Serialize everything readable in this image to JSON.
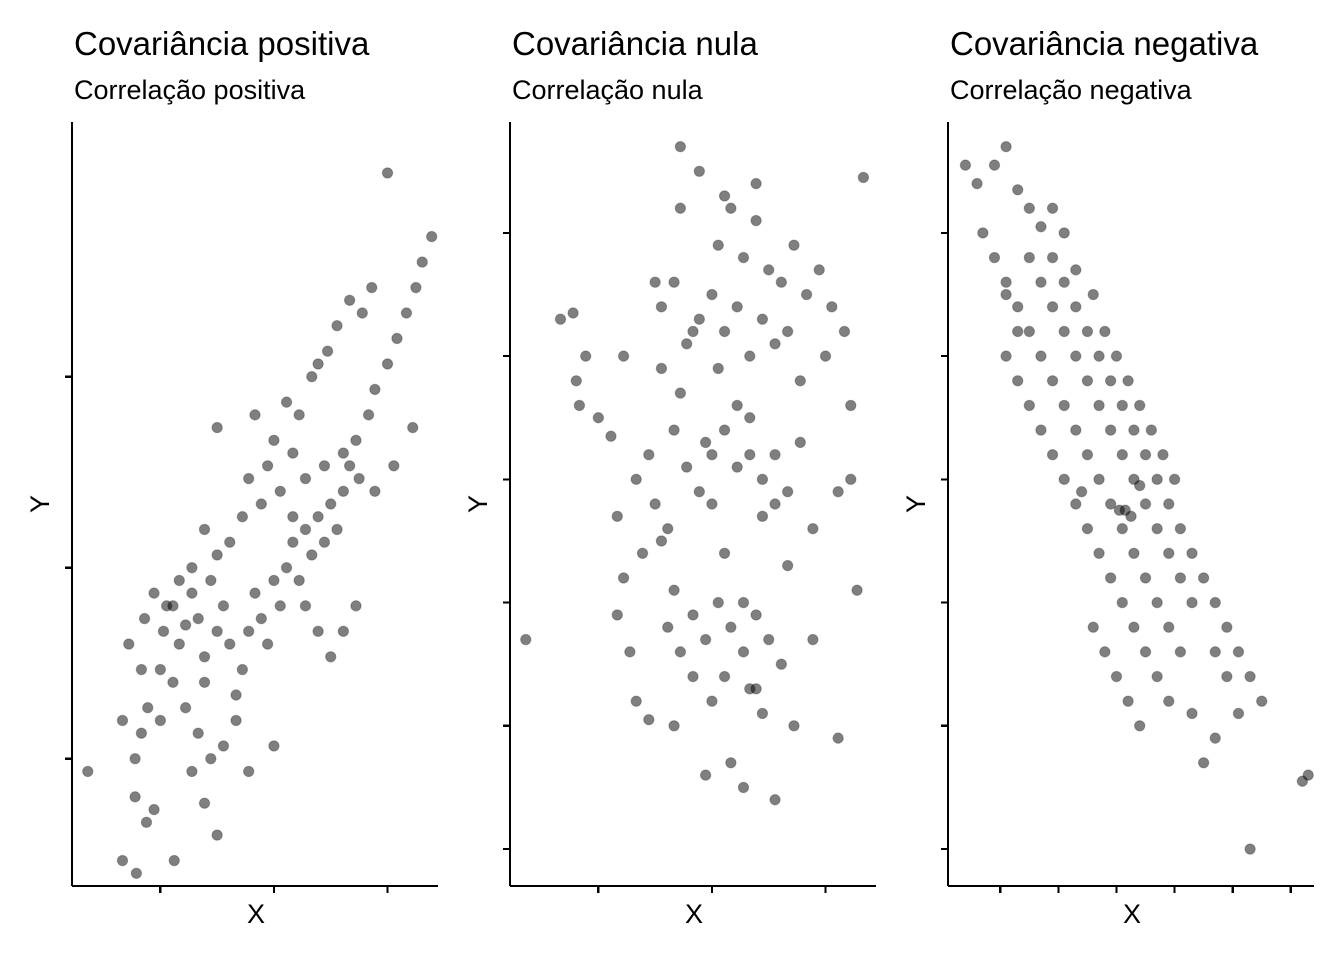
{
  "chart_data": [
    {
      "type": "scatter",
      "title": "Covariância positiva",
      "subtitle": "Correlação positiva",
      "xlabel": "X",
      "ylabel": "Y",
      "xlim": [
        -3.2,
        2.6
      ],
      "ylim": [
        -2.5,
        3.5
      ],
      "x_ticks": [
        -1.8,
        0,
        1.8
      ],
      "y_ticks": [
        -1.5,
        0,
        1.5
      ],
      "tick_labels_shown": false,
      "grid": false,
      "legend": "none",
      "point_color": "#000000",
      "point_alpha": 0.5,
      "points": [
        [
          -2.95,
          -1.6
        ],
        [
          -2.4,
          -2.3
        ],
        [
          -2.18,
          -2.4
        ],
        [
          -2.02,
          -2.0
        ],
        [
          -1.9,
          -1.9
        ],
        [
          -1.58,
          -2.3
        ],
        [
          -2.1,
          -1.3
        ],
        [
          -2.2,
          -1.8
        ],
        [
          -2.05,
          -0.4
        ],
        [
          -2.3,
          -0.6
        ],
        [
          -2.1,
          -0.8
        ],
        [
          -1.8,
          -0.8
        ],
        [
          -1.75,
          -0.5
        ],
        [
          -1.6,
          -0.3
        ],
        [
          -1.5,
          -0.6
        ],
        [
          -1.4,
          -0.45
        ],
        [
          -1.3,
          -0.2
        ],
        [
          -1.2,
          -0.4
        ],
        [
          -1.1,
          -0.7
        ],
        [
          -1.1,
          -0.9
        ],
        [
          -1.0,
          -0.1
        ],
        [
          -0.9,
          -0.5
        ],
        [
          -0.8,
          -0.3
        ],
        [
          -0.7,
          -0.6
        ],
        [
          -0.6,
          -1.0
        ],
        [
          -0.5,
          -0.8
        ],
        [
          -0.4,
          -0.5
        ],
        [
          -0.3,
          -0.2
        ],
        [
          -0.2,
          -0.4
        ],
        [
          -0.1,
          -0.6
        ],
        [
          0.0,
          -0.1
        ],
        [
          0.1,
          -0.3
        ],
        [
          0.2,
          0.0
        ],
        [
          0.3,
          0.2
        ],
        [
          0.4,
          -0.1
        ],
        [
          0.5,
          0.3
        ],
        [
          0.6,
          0.1
        ],
        [
          0.7,
          0.4
        ],
        [
          0.8,
          0.2
        ],
        [
          0.9,
          0.5
        ],
        [
          1.0,
          0.3
        ],
        [
          1.1,
          0.6
        ],
        [
          1.2,
          0.8
        ],
        [
          1.3,
          1.0
        ],
        [
          1.5,
          1.2
        ],
        [
          1.6,
          1.4
        ],
        [
          1.8,
          1.6
        ],
        [
          1.95,
          1.8
        ],
        [
          2.1,
          2.0
        ],
        [
          2.25,
          2.2
        ],
        [
          2.35,
          2.4
        ],
        [
          2.5,
          2.6
        ],
        [
          1.8,
          3.1
        ],
        [
          -0.9,
          1.1
        ],
        [
          -0.3,
          1.2
        ],
        [
          0.0,
          1.0
        ],
        [
          0.2,
          1.3
        ],
        [
          0.4,
          1.2
        ],
        [
          0.6,
          1.5
        ],
        [
          0.7,
          1.6
        ],
        [
          0.85,
          1.7
        ],
        [
          1.0,
          1.9
        ],
        [
          1.2,
          2.1
        ],
        [
          1.4,
          2.0
        ],
        [
          1.55,
          2.2
        ],
        [
          0.3,
          0.9
        ],
        [
          0.5,
          0.7
        ],
        [
          0.8,
          0.8
        ],
        [
          1.1,
          0.9
        ],
        [
          1.35,
          0.7
        ],
        [
          1.6,
          0.6
        ],
        [
          1.9,
          0.8
        ],
        [
          2.2,
          1.1
        ],
        [
          -0.5,
          0.4
        ],
        [
          -0.7,
          0.2
        ],
        [
          -0.9,
          0.1
        ],
        [
          -1.1,
          0.3
        ],
        [
          -1.3,
          0.0
        ],
        [
          -1.5,
          -0.1
        ],
        [
          -1.7,
          -0.3
        ],
        [
          -1.9,
          -0.2
        ],
        [
          -0.2,
          0.5
        ],
        [
          -0.4,
          0.7
        ],
        [
          -0.1,
          0.8
        ],
        [
          0.1,
          0.6
        ],
        [
          0.3,
          0.4
        ],
        [
          0.5,
          -0.3
        ],
        [
          0.7,
          -0.5
        ],
        [
          0.9,
          -0.7
        ],
        [
          1.1,
          -0.5
        ],
        [
          1.3,
          -0.3
        ],
        [
          -0.6,
          -1.2
        ],
        [
          -0.8,
          -1.4
        ],
        [
          -1.0,
          -1.5
        ],
        [
          -1.2,
          -1.3
        ],
        [
          -1.4,
          -1.1
        ],
        [
          -1.6,
          -0.9
        ],
        [
          -0.4,
          -1.6
        ],
        [
          -0.9,
          -2.1
        ],
        [
          -2.2,
          -1.5
        ],
        [
          -2.4,
          -1.2
        ],
        [
          -2.0,
          -1.1
        ],
        [
          -1.8,
          -1.2
        ],
        [
          -1.3,
          -1.6
        ],
        [
          -1.1,
          -1.85
        ],
        [
          0.0,
          -1.4
        ]
      ]
    },
    {
      "type": "scatter",
      "title": "Covariância nula",
      "subtitle": "Correlação nula",
      "xlabel": "X",
      "ylabel": "Y",
      "xlim": [
        -3.2,
        2.6
      ],
      "ylim": [
        -3.3,
        2.9
      ],
      "x_ticks": [
        -1.8,
        0,
        1.8
      ],
      "y_ticks": [
        -3,
        -2,
        -1,
        0,
        1,
        2
      ],
      "tick_labels_shown": false,
      "grid": false,
      "legend": "none",
      "points": [
        [
          -2.95,
          -1.3
        ],
        [
          -2.4,
          1.3
        ],
        [
          -2.2,
          1.35
        ],
        [
          -2.15,
          0.8
        ],
        [
          -2.1,
          0.6
        ],
        [
          -2.0,
          1.0
        ],
        [
          -1.8,
          0.5
        ],
        [
          -1.6,
          0.35
        ],
        [
          -1.5,
          -0.3
        ],
        [
          -1.4,
          -0.8
        ],
        [
          -1.2,
          0.0
        ],
        [
          -1.0,
          0.2
        ],
        [
          -0.8,
          -0.5
        ],
        [
          -0.6,
          -0.9
        ],
        [
          -0.5,
          0.7
        ],
        [
          -0.3,
          1.2
        ],
        [
          -0.1,
          0.3
        ],
        [
          0.0,
          -0.2
        ],
        [
          0.1,
          0.9
        ],
        [
          0.2,
          -0.6
        ],
        [
          0.4,
          0.1
        ],
        [
          0.5,
          -1.0
        ],
        [
          0.6,
          0.5
        ],
        [
          0.8,
          -0.3
        ],
        [
          1.0,
          0.2
        ],
        [
          1.2,
          -0.7
        ],
        [
          1.4,
          0.8
        ],
        [
          1.6,
          -0.4
        ],
        [
          1.8,
          1.0
        ],
        [
          2.0,
          -0.1
        ],
        [
          2.2,
          0.6
        ],
        [
          2.3,
          -0.9
        ],
        [
          2.2,
          0.0
        ],
        [
          -1.2,
          -1.8
        ],
        [
          -1.0,
          -1.95
        ],
        [
          -0.6,
          -2.0
        ],
        [
          -0.3,
          -1.6
        ],
        [
          -0.1,
          -2.4
        ],
        [
          0.3,
          -2.3
        ],
        [
          0.5,
          -2.5
        ],
        [
          0.7,
          -1.7
        ],
        [
          1.0,
          -2.6
        ],
        [
          1.3,
          -2.0
        ],
        [
          1.6,
          -1.3
        ],
        [
          2.0,
          -2.1
        ],
        [
          -0.5,
          2.2
        ],
        [
          -0.2,
          2.5
        ],
        [
          0.1,
          1.9
        ],
        [
          0.3,
          2.2
        ],
        [
          0.5,
          1.8
        ],
        [
          0.7,
          2.1
        ],
        [
          0.9,
          1.7
        ],
        [
          1.1,
          1.6
        ],
        [
          1.3,
          1.9
        ],
        [
          1.5,
          1.5
        ],
        [
          1.7,
          1.7
        ],
        [
          1.9,
          1.4
        ],
        [
          2.1,
          1.2
        ],
        [
          2.4,
          2.45
        ],
        [
          -0.8,
          1.4
        ],
        [
          -0.6,
          1.6
        ],
        [
          -0.4,
          1.1
        ],
        [
          -0.2,
          1.3
        ],
        [
          0.0,
          1.5
        ],
        [
          0.2,
          1.2
        ],
        [
          0.4,
          1.4
        ],
        [
          0.6,
          1.0
        ],
        [
          0.8,
          1.3
        ],
        [
          1.0,
          1.1
        ],
        [
          1.2,
          1.2
        ],
        [
          -0.8,
          0.9
        ],
        [
          -0.6,
          0.4
        ],
        [
          -0.4,
          0.1
        ],
        [
          -0.2,
          -0.1
        ],
        [
          0.0,
          0.2
        ],
        [
          0.2,
          0.4
        ],
        [
          0.4,
          0.6
        ],
        [
          0.6,
          0.2
        ],
        [
          0.8,
          0.0
        ],
        [
          1.0,
          -0.2
        ],
        [
          1.2,
          -0.1
        ],
        [
          1.4,
          0.3
        ],
        [
          -0.7,
          -1.2
        ],
        [
          -0.5,
          -1.4
        ],
        [
          -0.3,
          -1.1
        ],
        [
          -0.1,
          -1.3
        ],
        [
          0.1,
          -1.0
        ],
        [
          0.3,
          -1.2
        ],
        [
          0.5,
          -1.4
        ],
        [
          0.7,
          -1.1
        ],
        [
          0.9,
          -1.3
        ],
        [
          1.1,
          -1.5
        ],
        [
          -0.9,
          -0.2
        ],
        [
          -0.7,
          -0.4
        ],
        [
          -1.1,
          -0.6
        ],
        [
          -1.3,
          -1.4
        ],
        [
          -1.5,
          -1.1
        ],
        [
          0.0,
          -1.8
        ],
        [
          0.2,
          -1.6
        ],
        [
          0.6,
          -1.7
        ],
        [
          0.8,
          -1.9
        ],
        [
          -0.5,
          2.7
        ],
        [
          0.2,
          2.3
        ],
        [
          0.7,
          2.4
        ],
        [
          -1.4,
          1.0
        ],
        [
          -0.9,
          1.6
        ]
      ]
    },
    {
      "type": "scatter",
      "title": "Covariância negativa",
      "subtitle": "Correlação negativa",
      "xlabel": "X",
      "ylabel": "Y",
      "xlim": [
        -3.0,
        3.3
      ],
      "ylim": [
        -3.3,
        2.9
      ],
      "x_ticks": [
        -2.1,
        -1.1,
        -0.1,
        0.9,
        1.9,
        2.9
      ],
      "y_ticks": [
        -3,
        -2,
        -1,
        0,
        1,
        2
      ],
      "tick_labels_shown": false,
      "grid": false,
      "legend": "none",
      "points": [
        [
          -2.7,
          2.55
        ],
        [
          -2.5,
          2.4
        ],
        [
          -2.2,
          2.55
        ],
        [
          -2.0,
          2.7
        ],
        [
          -1.8,
          2.35
        ],
        [
          -1.6,
          2.2
        ],
        [
          -1.4,
          2.05
        ],
        [
          -1.2,
          1.8
        ],
        [
          -1.0,
          1.6
        ],
        [
          -0.8,
          1.4
        ],
        [
          -0.6,
          1.2
        ],
        [
          -0.4,
          1.0
        ],
        [
          -0.2,
          0.8
        ],
        [
          0.0,
          0.6
        ],
        [
          0.2,
          0.4
        ],
        [
          0.4,
          0.2
        ],
        [
          0.6,
          0.0
        ],
        [
          0.8,
          -0.2
        ],
        [
          1.0,
          -0.4
        ],
        [
          1.2,
          -0.6
        ],
        [
          1.4,
          -0.8
        ],
        [
          1.6,
          -1.0
        ],
        [
          1.8,
          -1.2
        ],
        [
          2.0,
          -1.4
        ],
        [
          2.2,
          -1.6
        ],
        [
          2.4,
          -1.8
        ],
        [
          3.2,
          -2.4
        ],
        [
          3.1,
          -2.45
        ],
        [
          2.2,
          -3.0
        ],
        [
          -2.4,
          2.0
        ],
        [
          -2.2,
          1.8
        ],
        [
          -2.0,
          1.6
        ],
        [
          -1.8,
          1.4
        ],
        [
          -1.6,
          1.2
        ],
        [
          -1.4,
          1.0
        ],
        [
          -1.2,
          0.8
        ],
        [
          -1.0,
          0.6
        ],
        [
          -0.8,
          0.4
        ],
        [
          -0.6,
          0.2
        ],
        [
          -0.4,
          0.0
        ],
        [
          -0.2,
          -0.2
        ],
        [
          0.0,
          -0.4
        ],
        [
          0.2,
          -0.6
        ],
        [
          0.4,
          -0.8
        ],
        [
          0.6,
          -1.0
        ],
        [
          0.8,
          -1.2
        ],
        [
          1.0,
          -1.4
        ],
        [
          -2.0,
          1.0
        ],
        [
          -1.8,
          0.8
        ],
        [
          -1.6,
          0.6
        ],
        [
          -1.4,
          0.4
        ],
        [
          -1.2,
          0.2
        ],
        [
          -1.0,
          0.0
        ],
        [
          -0.8,
          -0.2
        ],
        [
          -0.6,
          -0.4
        ],
        [
          -0.4,
          -0.6
        ],
        [
          -0.2,
          -0.8
        ],
        [
          0.0,
          -1.0
        ],
        [
          0.2,
          -1.2
        ],
        [
          0.4,
          -1.4
        ],
        [
          0.6,
          -1.6
        ],
        [
          0.8,
          -1.8
        ],
        [
          1.4,
          -2.3
        ],
        [
          1.6,
          -2.1
        ],
        [
          1.2,
          -1.9
        ],
        [
          -1.6,
          1.8
        ],
        [
          -1.4,
          1.6
        ],
        [
          -1.2,
          1.4
        ],
        [
          -1.0,
          1.2
        ],
        [
          -0.8,
          1.0
        ],
        [
          -0.6,
          0.8
        ],
        [
          -0.4,
          0.6
        ],
        [
          -0.2,
          0.4
        ],
        [
          0.0,
          0.2
        ],
        [
          0.2,
          0.0
        ],
        [
          0.4,
          -0.2
        ],
        [
          0.6,
          -0.4
        ],
        [
          0.8,
          -0.6
        ],
        [
          1.0,
          -0.8
        ],
        [
          1.2,
          -1.0
        ],
        [
          -1.2,
          2.2
        ],
        [
          -1.0,
          2.0
        ],
        [
          -0.8,
          1.7
        ],
        [
          -0.5,
          1.5
        ],
        [
          -0.3,
          1.2
        ],
        [
          -0.1,
          1.0
        ],
        [
          0.1,
          0.8
        ],
        [
          0.3,
          0.6
        ],
        [
          0.5,
          0.4
        ],
        [
          0.7,
          0.2
        ],
        [
          0.9,
          0.0
        ],
        [
          -0.5,
          -1.2
        ],
        [
          -0.3,
          -1.4
        ],
        [
          -0.1,
          -1.6
        ],
        [
          0.1,
          -1.8
        ],
        [
          0.3,
          -2.0
        ],
        [
          1.8,
          -1.6
        ],
        [
          2.0,
          -1.9
        ],
        [
          1.6,
          -1.4
        ],
        [
          -2.0,
          1.5
        ],
        [
          -1.8,
          1.2
        ],
        [
          -0.7,
          -0.1
        ],
        [
          0.15,
          -0.3
        ],
        [
          -0.05,
          -0.25
        ],
        [
          0.05,
          -0.25
        ],
        [
          0.3,
          -0.05
        ]
      ]
    }
  ]
}
